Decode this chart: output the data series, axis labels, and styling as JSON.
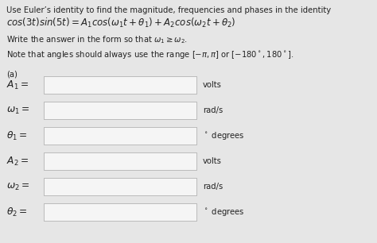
{
  "bg_color": "#e6e6e6",
  "title_line1": "Use Euler’s identity to find the magnitude, frequencies and phases in the identity",
  "title_line2": "$cos(3t)sin(5t) = A_1cos(\\omega_1 t + \\theta_1) + A_2cos(\\omega_2 t + \\theta_2)$",
  "title_line3": "Write the answer in the form so that $\\omega_1 \\geq \\omega_2$.",
  "note_line": "Note that angles should always use the range $[-\\pi, \\pi]$ or $[-180^\\circ, 180^\\circ]$.",
  "part_label": "(a)",
  "rows": [
    {
      "label": "$A_1=$",
      "unit": "volts"
    },
    {
      "label": "$\\omega_1 =$",
      "unit": "rad/s"
    },
    {
      "label": "$\\theta_1 =$",
      "unit": "$^\\circ$ degrees"
    },
    {
      "label": "$A_2 =$",
      "unit": "volts"
    },
    {
      "label": "$\\omega_2 =$",
      "unit": "rad/s"
    },
    {
      "label": "$\\theta_2 =$",
      "unit": "$^\\circ$ degrees"
    }
  ],
  "text_color": "#222222",
  "box_color": "#f5f5f5",
  "box_edge_color": "#bbbbbb",
  "fs_body": 7.2,
  "fs_math": 8.5,
  "fs_label": 8.8
}
